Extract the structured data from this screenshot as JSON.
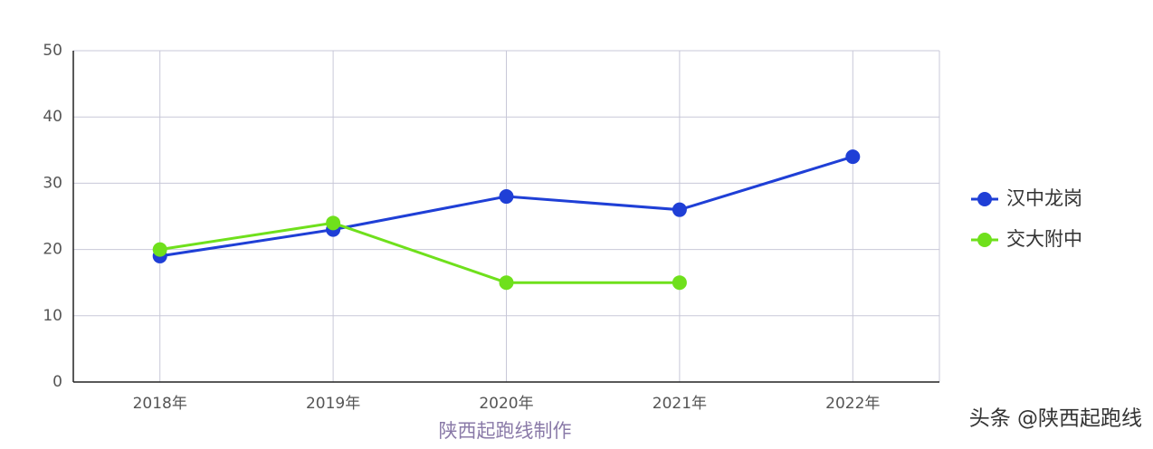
{
  "chart_data": {
    "type": "line",
    "categories": [
      "2018年",
      "2019年",
      "2020年",
      "2021年",
      "2022年"
    ],
    "series": [
      {
        "name": "汉中龙岗",
        "color": "#1f3fd6",
        "values": [
          19,
          23,
          28,
          26,
          34
        ]
      },
      {
        "name": "交大附中",
        "color": "#6fe01c",
        "values": [
          20,
          24,
          15,
          15,
          null
        ]
      }
    ],
    "ylim": [
      0,
      50
    ],
    "yticks": [
      0,
      10,
      20,
      30,
      40,
      50
    ],
    "grid": true,
    "xlabel": "陕西起跑线制作",
    "legend": "right",
    "watermark": "头条 @陕西起跑线"
  }
}
